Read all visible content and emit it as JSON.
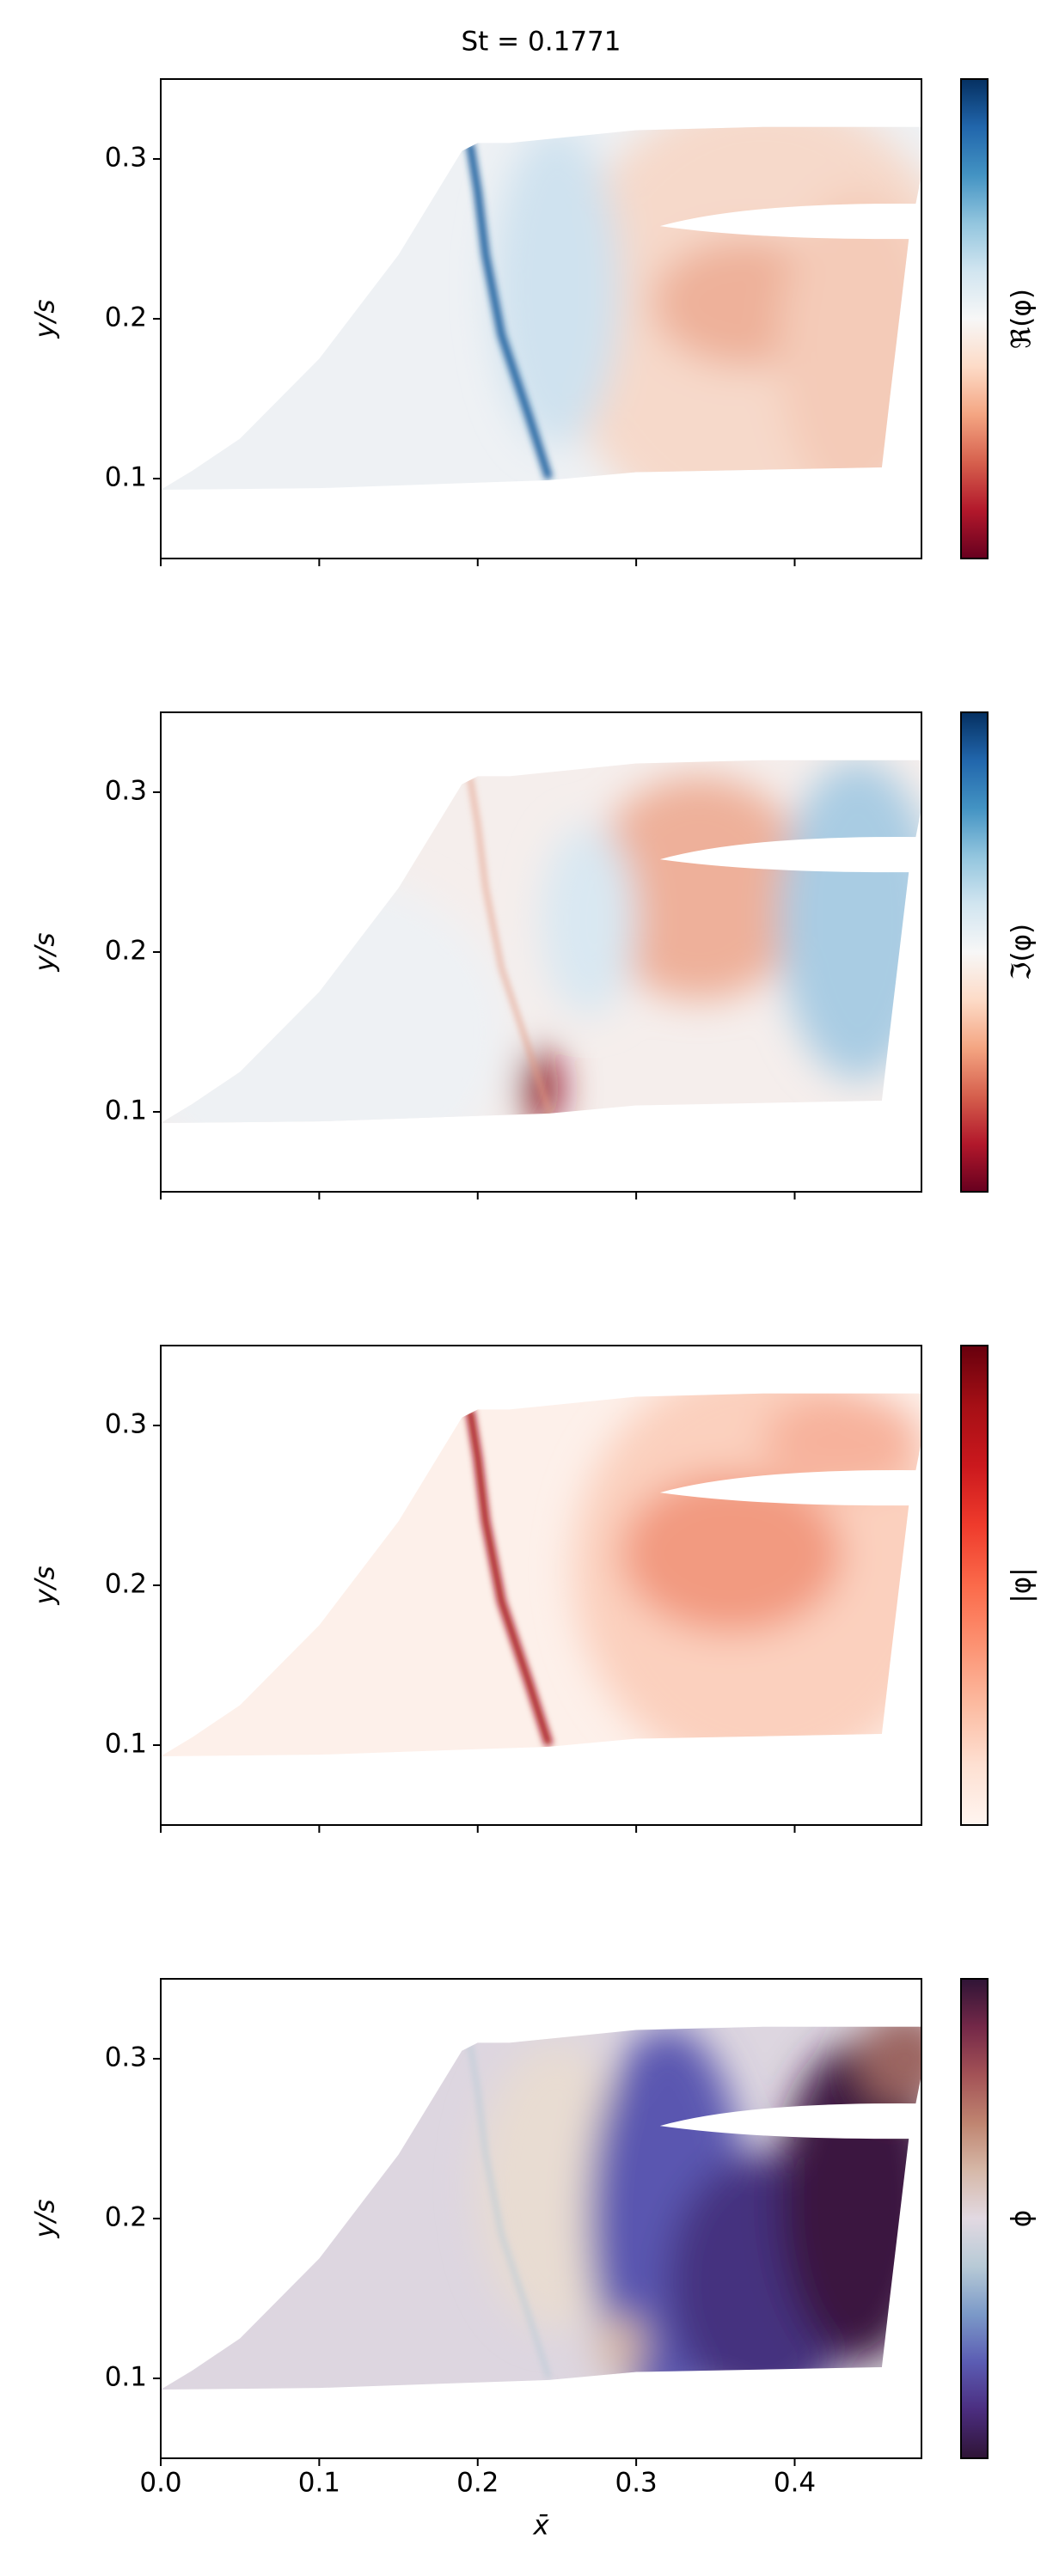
{
  "chart_data": [
    {
      "type": "contour",
      "title": "St = 0.1771",
      "ylabel": "y/s",
      "colorbar_label": "ℜ(φ)",
      "colorbar_colors": [
        "#67001f",
        "#b2182b",
        "#d6604d",
        "#f4a582",
        "#fddbc7",
        "#f7f7f7",
        "#d1e5f0",
        "#92c5de",
        "#4393c3",
        "#2166ac",
        "#053061"
      ],
      "xlim": [
        0,
        0.48
      ],
      "ylim": [
        0.05,
        0.35
      ],
      "yticks": [
        0.1,
        0.2,
        0.3
      ],
      "xticks": [
        0,
        0.1,
        0.2,
        0.3,
        0.4
      ],
      "xticklabels": false
    },
    {
      "type": "contour",
      "ylabel": "y/s",
      "colorbar_label": "ℑ(φ)",
      "colorbar_colors": [
        "#67001f",
        "#b2182b",
        "#d6604d",
        "#f4a582",
        "#fddbc7",
        "#f7f7f7",
        "#d1e5f0",
        "#92c5de",
        "#4393c3",
        "#2166ac",
        "#053061"
      ],
      "xlim": [
        0,
        0.48
      ],
      "ylim": [
        0.05,
        0.35
      ],
      "yticks": [
        0.1,
        0.2,
        0.3
      ],
      "xticks": [
        0,
        0.1,
        0.2,
        0.3,
        0.4
      ],
      "xticklabels": false
    },
    {
      "type": "contour",
      "ylabel": "y/s",
      "colorbar_label": "|φ|",
      "colorbar_colors": [
        "#fff5f0",
        "#fee0d2",
        "#fcbba1",
        "#fc9272",
        "#fb6a4a",
        "#ef3b2c",
        "#cb181d",
        "#a50f15",
        "#67000d"
      ],
      "xlim": [
        0,
        0.48
      ],
      "ylim": [
        0.05,
        0.35
      ],
      "yticks": [
        0.1,
        0.2,
        0.3
      ],
      "xticks": [
        0,
        0.1,
        0.2,
        0.3,
        0.4
      ],
      "xticklabels": false
    },
    {
      "type": "contour",
      "ylabel": "y/s",
      "xlabel": "x̄",
      "colorbar_label": "ϕ",
      "colorbar_colors": [
        "#2f1436",
        "#4b2d7f",
        "#5b5cb3",
        "#7b99c8",
        "#b7cad6",
        "#e2d9e2",
        "#d6b8a8",
        "#bf8470",
        "#a35256",
        "#742848",
        "#2f1436"
      ],
      "xlim": [
        0,
        0.48
      ],
      "ylim": [
        0.05,
        0.35
      ],
      "yticks": [
        0.1,
        0.2,
        0.3
      ],
      "xticks": [
        {
          "value": 0,
          "label": "0.0"
        },
        0.1,
        0.2,
        0.3,
        0.4
      ],
      "xticklabels": true
    }
  ]
}
